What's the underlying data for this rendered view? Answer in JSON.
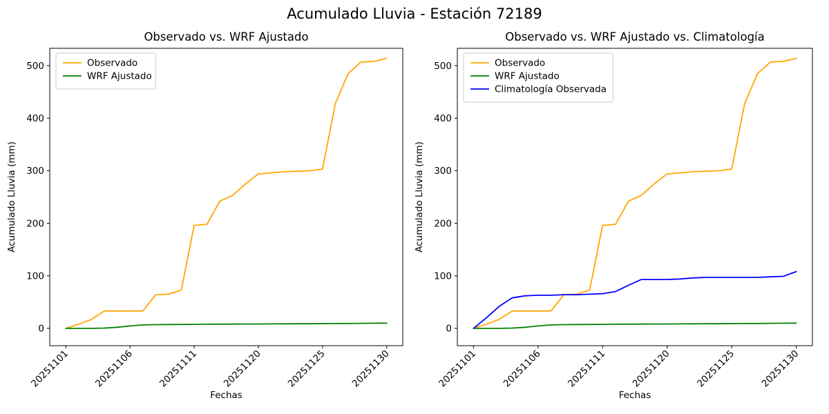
{
  "figure": {
    "suptitle": "Acumulado Lluvia - Estación 72189",
    "background": "#ffffff",
    "text_color": "#000000"
  },
  "chart_data": [
    {
      "type": "line",
      "title": "Observado vs. WRF Ajustado",
      "xlabel": "Fechas",
      "ylabel": "Acumulado Lluvia (mm)",
      "grid": false,
      "legend_position": "upper left",
      "xtick_positions": [
        0,
        5,
        10,
        15,
        20,
        25
      ],
      "xtick_labels": [
        "20251101",
        "20251106",
        "20251111",
        "20251120",
        "20251125",
        "20251130"
      ],
      "yticks": [
        0,
        100,
        200,
        300,
        400,
        500
      ],
      "xlim": [
        -1.25,
        26.25
      ],
      "ylim": [
        -33,
        533
      ],
      "series": [
        {
          "name": "Observado",
          "color": "#FFA500",
          "values": [
            0,
            8,
            17,
            33,
            33,
            33,
            33,
            64,
            65,
            73,
            196,
            198,
            242,
            253,
            275,
            294,
            296,
            298,
            299,
            300,
            303,
            428,
            485,
            507,
            508,
            514
          ]
        },
        {
          "name": "WRF Ajustado",
          "color": "#008000",
          "values": [
            0,
            0,
            0,
            0.5,
            2,
            4.5,
            6.5,
            7,
            7.3,
            7.5,
            7.6,
            7.8,
            8,
            8.1,
            8.2,
            8.3,
            8.5,
            8.6,
            8.7,
            8.8,
            9,
            9.1,
            9.3,
            9.5,
            9.8,
            10
          ]
        }
      ]
    },
    {
      "type": "line",
      "title": "Observado vs. WRF Ajustado vs. Climatología",
      "xlabel": "Fechas",
      "ylabel": "Acumulado Lluvia (mm)",
      "grid": false,
      "legend_position": "upper left",
      "xtick_positions": [
        0,
        5,
        10,
        15,
        20,
        25
      ],
      "xtick_labels": [
        "20251101",
        "20251106",
        "20251111",
        "20251120",
        "20251125",
        "20251130"
      ],
      "yticks": [
        0,
        100,
        200,
        300,
        400,
        500
      ],
      "xlim": [
        -1.25,
        26.25
      ],
      "ylim": [
        -33,
        533
      ],
      "series": [
        {
          "name": "Observado",
          "color": "#FFA500",
          "values": [
            0,
            8,
            17,
            33,
            33,
            33,
            33,
            64,
            65,
            73,
            196,
            198,
            242,
            253,
            275,
            294,
            296,
            298,
            299,
            300,
            303,
            428,
            485,
            507,
            508,
            514
          ]
        },
        {
          "name": "WRF Ajustado",
          "color": "#008000",
          "values": [
            0,
            0,
            0,
            0.5,
            2,
            4.5,
            6.5,
            7,
            7.3,
            7.5,
            7.6,
            7.8,
            8,
            8.1,
            8.2,
            8.3,
            8.5,
            8.6,
            8.7,
            8.8,
            9,
            9.1,
            9.3,
            9.5,
            9.8,
            10
          ]
        },
        {
          "name": "Climatología Observada",
          "color": "#0000FF",
          "values": [
            0,
            20,
            42,
            58,
            62,
            63,
            63,
            64,
            64,
            65,
            66,
            70,
            82,
            93,
            93,
            93,
            94,
            96,
            97,
            97,
            97,
            97,
            97,
            98,
            99,
            108
          ]
        }
      ]
    }
  ]
}
